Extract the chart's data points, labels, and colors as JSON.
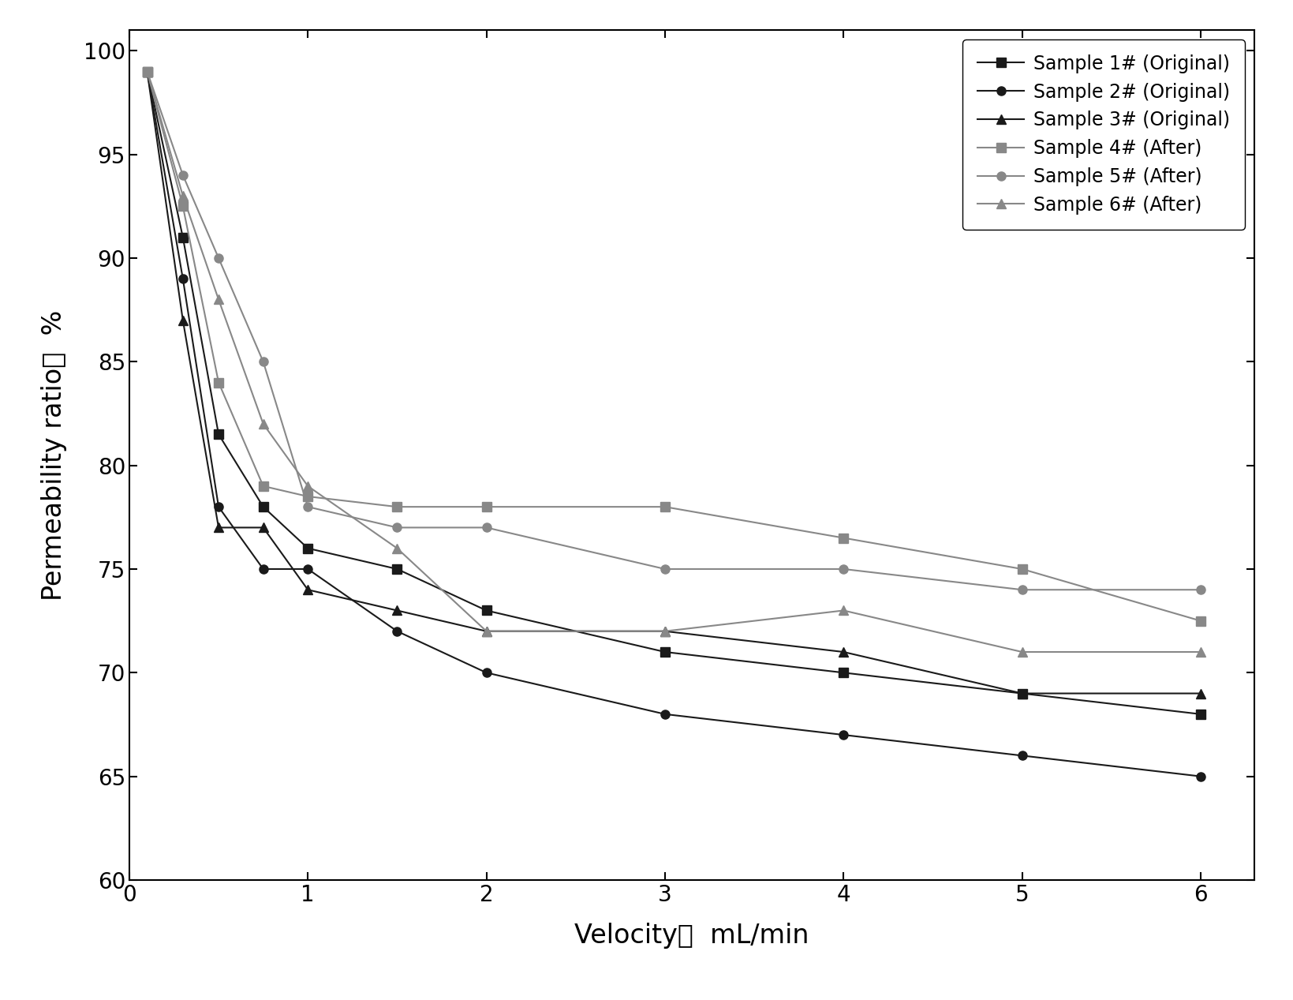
{
  "x_values": [
    0.1,
    0.3,
    0.5,
    0.75,
    1.0,
    1.5,
    2.0,
    3.0,
    4.0,
    5.0,
    6.0
  ],
  "series": [
    {
      "label": "Sample 1# (Original)",
      "color": "#1a1a1a",
      "marker": "s",
      "linewidth": 1.5,
      "markersize": 8,
      "linestyle": "-",
      "values": [
        99.0,
        91.0,
        81.5,
        78.0,
        76.0,
        75.0,
        73.0,
        71.0,
        70.0,
        69.0,
        68.0
      ]
    },
    {
      "label": "Sample 2# (Original)",
      "color": "#1a1a1a",
      "marker": "o",
      "linewidth": 1.5,
      "markersize": 8,
      "linestyle": "-",
      "values": [
        99.0,
        89.0,
        78.0,
        75.0,
        75.0,
        72.0,
        70.0,
        68.0,
        67.0,
        66.0,
        65.0
      ]
    },
    {
      "label": "Sample 3# (Original)",
      "color": "#1a1a1a",
      "marker": "^",
      "linewidth": 1.5,
      "markersize": 8,
      "linestyle": "-",
      "values": [
        99.0,
        87.0,
        77.0,
        77.0,
        74.0,
        73.0,
        72.0,
        72.0,
        71.0,
        69.0,
        69.0
      ]
    },
    {
      "label": "Sample 4# (After)",
      "color": "#888888",
      "marker": "s",
      "linewidth": 1.5,
      "markersize": 8,
      "linestyle": "-",
      "values": [
        99.0,
        92.5,
        84.0,
        79.0,
        78.5,
        78.0,
        78.0,
        78.0,
        76.5,
        75.0,
        72.5
      ]
    },
    {
      "label": "Sample 5# (After)",
      "color": "#888888",
      "marker": "o",
      "linewidth": 1.5,
      "markersize": 8,
      "linestyle": "-",
      "values": [
        99.0,
        94.0,
        90.0,
        85.0,
        78.0,
        77.0,
        77.0,
        75.0,
        75.0,
        74.0,
        74.0
      ]
    },
    {
      "label": "Sample 6# (After)",
      "color": "#888888",
      "marker": "^",
      "linewidth": 1.5,
      "markersize": 8,
      "linestyle": "-",
      "values": [
        99.0,
        93.0,
        88.0,
        82.0,
        79.0,
        76.0,
        72.0,
        72.0,
        73.0,
        71.0,
        71.0
      ]
    }
  ],
  "xlabel": "Velocity，  mL/min",
  "ylabel": "Permeability ratio，  %",
  "xlim": [
    0,
    6.3
  ],
  "ylim": [
    60,
    101
  ],
  "xticks": [
    0,
    1,
    2,
    3,
    4,
    5,
    6
  ],
  "yticks": [
    60,
    65,
    70,
    75,
    80,
    85,
    90,
    95,
    100
  ],
  "legend_loc": "upper right",
  "legend_fontsize": 17,
  "axis_label_fontsize": 24,
  "tick_fontsize": 20,
  "background_color": "#ffffff",
  "figure_width": 16.39,
  "figure_height": 12.67,
  "dpi": 100
}
